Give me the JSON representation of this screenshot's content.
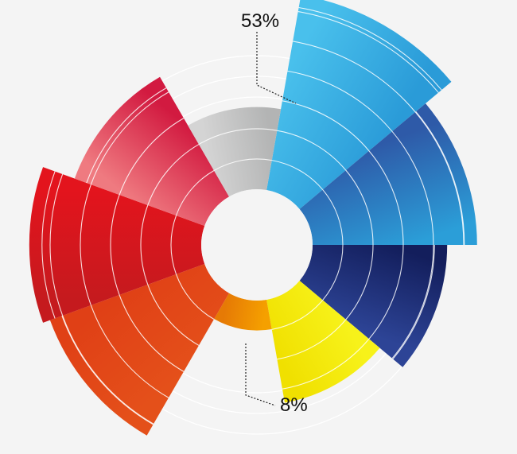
{
  "chart_data": {
    "type": "radial-bar",
    "segments": [
      {
        "color_start": "#49c0ec",
        "color_end": "#2a9bd8",
        "value": 53
      },
      {
        "color_start": "#2e5aa8",
        "color_end": "#2b9ed8",
        "value": 44
      },
      {
        "color_start": "#131e5c",
        "color_end": "#2d4496",
        "value": 36
      },
      {
        "color_start": "#f7f21a",
        "color_end": "#f0e000",
        "value": 28
      },
      {
        "color_start": "#f5a000",
        "color_end": "#e67a05",
        "value": 8
      },
      {
        "color_start": "#e4501a",
        "color_end": "#e04016",
        "value": 44
      },
      {
        "color_start": "#c51a1e",
        "color_end": "#e3141d",
        "value": 46
      },
      {
        "color_start": "#ef7a80",
        "color_end": "#d21a40",
        "value": 37
      },
      {
        "color_start": "#d4d4d4",
        "color_end": "#b3b4b4",
        "value": 22
      }
    ],
    "callouts": [
      {
        "text": "53%",
        "segment": 0
      },
      {
        "text": "8%",
        "segment": 4
      }
    ]
  }
}
